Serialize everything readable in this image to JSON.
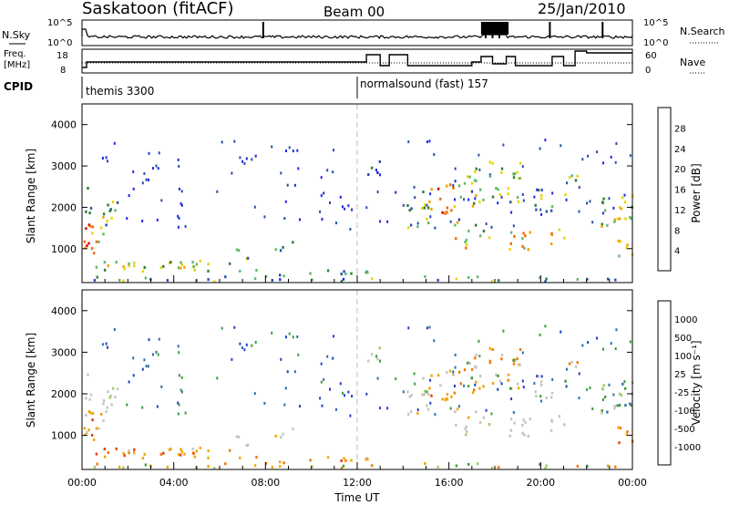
{
  "header": {
    "station": "Saskatoon (fitACF)",
    "beam": "Beam 00",
    "date": "25/Jan/2010"
  },
  "status_panels": {
    "nsky_label": "N.Sky",
    "nsearch_label": "N.Search",
    "freq_label_1": "Freq.",
    "freq_label_2": "[MHz]",
    "nave_label": "Nave",
    "cpid_label": "CPID",
    "noise_ticks_left": [
      "10^5",
      "10^0"
    ],
    "noise_ticks_right": [
      "10^5",
      "10^0"
    ],
    "freq_ticks": [
      "18",
      "8"
    ],
    "nave_ticks": [
      "60",
      "0"
    ],
    "cpid_segments": [
      {
        "start_h": 0,
        "label": "themis 3300"
      },
      {
        "start_h": 12,
        "label": "normalsound (fast) 157"
      }
    ]
  },
  "chart_data": [
    {
      "type": "heatmap",
      "name": "power",
      "xlabel": "",
      "ylabel": "Slant Range [km]",
      "xlim_hours": [
        0,
        24
      ],
      "ylim": [
        180,
        4500
      ],
      "yticks": [
        "1000",
        "2000",
        "3000",
        "4000"
      ],
      "colorbar": {
        "label": "Power [dB]",
        "ticks": [
          "4",
          "8",
          "12",
          "16",
          "20",
          "24",
          "28"
        ],
        "colors": [
          "#1e28e6",
          "#2850a8",
          "#2e7d32",
          "#5fba6a",
          "#e8d400",
          "#f2a000",
          "#ee6a00",
          "#e10000"
        ]
      }
    },
    {
      "type": "heatmap",
      "name": "velocity",
      "xlabel": "Time UT",
      "ylabel": "Slant Range [km]",
      "xlim_hours": [
        0,
        24
      ],
      "ylim": [
        180,
        4500
      ],
      "yticks": [
        "1000",
        "2000",
        "3000",
        "4000"
      ],
      "xticks": [
        "00:00",
        "04:00",
        "08:00",
        "12:00",
        "16:00",
        "20:00",
        "00:00"
      ],
      "colorbar": {
        "label": "Velocity [m s⁻¹]",
        "ticks": [
          "1000",
          "500",
          "100",
          "25",
          "-25",
          "-100",
          "-500",
          "-1000"
        ],
        "colors": [
          "#1e40c8",
          "#2e6fa8",
          "#3c9a3c",
          "#9ad060",
          "#c8c8c0",
          "#f5a300",
          "#f07800",
          "#e84000",
          "#d80000"
        ]
      }
    }
  ],
  "colors": {
    "gray_scatter": "#c6c4bc",
    "dash_line": "#bbbbbb"
  }
}
